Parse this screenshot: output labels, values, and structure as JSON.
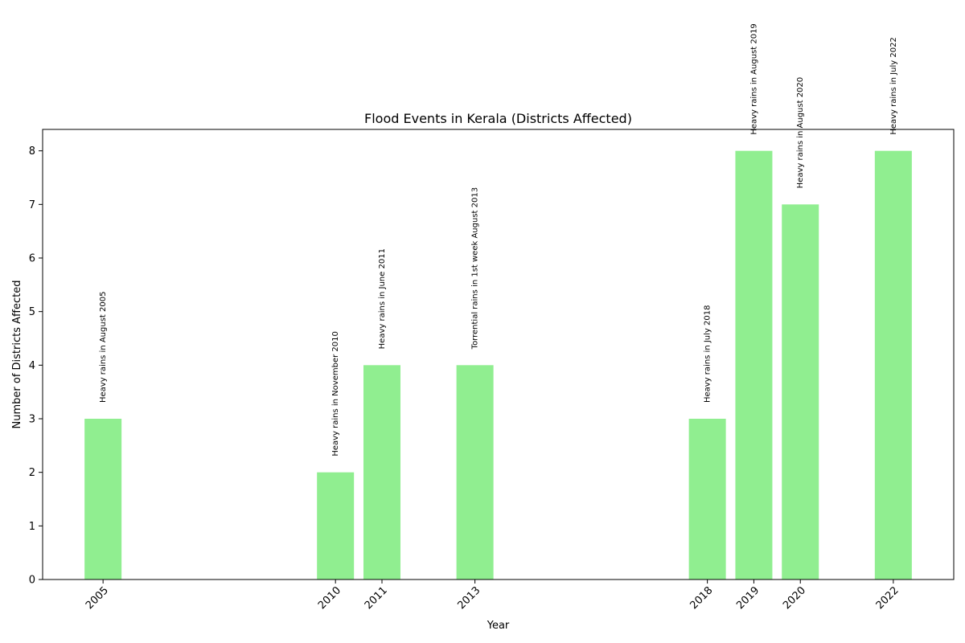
{
  "chart_data": {
    "type": "bar",
    "title": "Flood Events in Kerala (Districts Affected)",
    "xlabel": "Year",
    "ylabel": "Number of Districts Affected",
    "x": [
      2005,
      2010,
      2011,
      2013,
      2018,
      2019,
      2020,
      2022
    ],
    "categories": [
      "2005",
      "2010",
      "2011",
      "2013",
      "2018",
      "2019",
      "2020",
      "2022"
    ],
    "values": [
      3,
      2,
      4,
      4,
      3,
      8,
      7,
      8
    ],
    "annotations": [
      "Heavy rains in August 2005",
      "Heavy rains in November 2010",
      "Heavy rains in June 2011",
      "Torrential rains in 1st week August 2013",
      "Heavy rains in July 2018",
      "Heavy rains in August 2019",
      "Heavy rains in August 2020",
      "Heavy rains in July 2022"
    ],
    "xlim": [
      2003.7,
      2023.3
    ],
    "ylim": [
      0,
      8.4
    ],
    "yticks": [
      0,
      1,
      2,
      3,
      4,
      5,
      6,
      7,
      8
    ],
    "bar_color": "#90ee90",
    "grid": false,
    "legend": "none"
  }
}
